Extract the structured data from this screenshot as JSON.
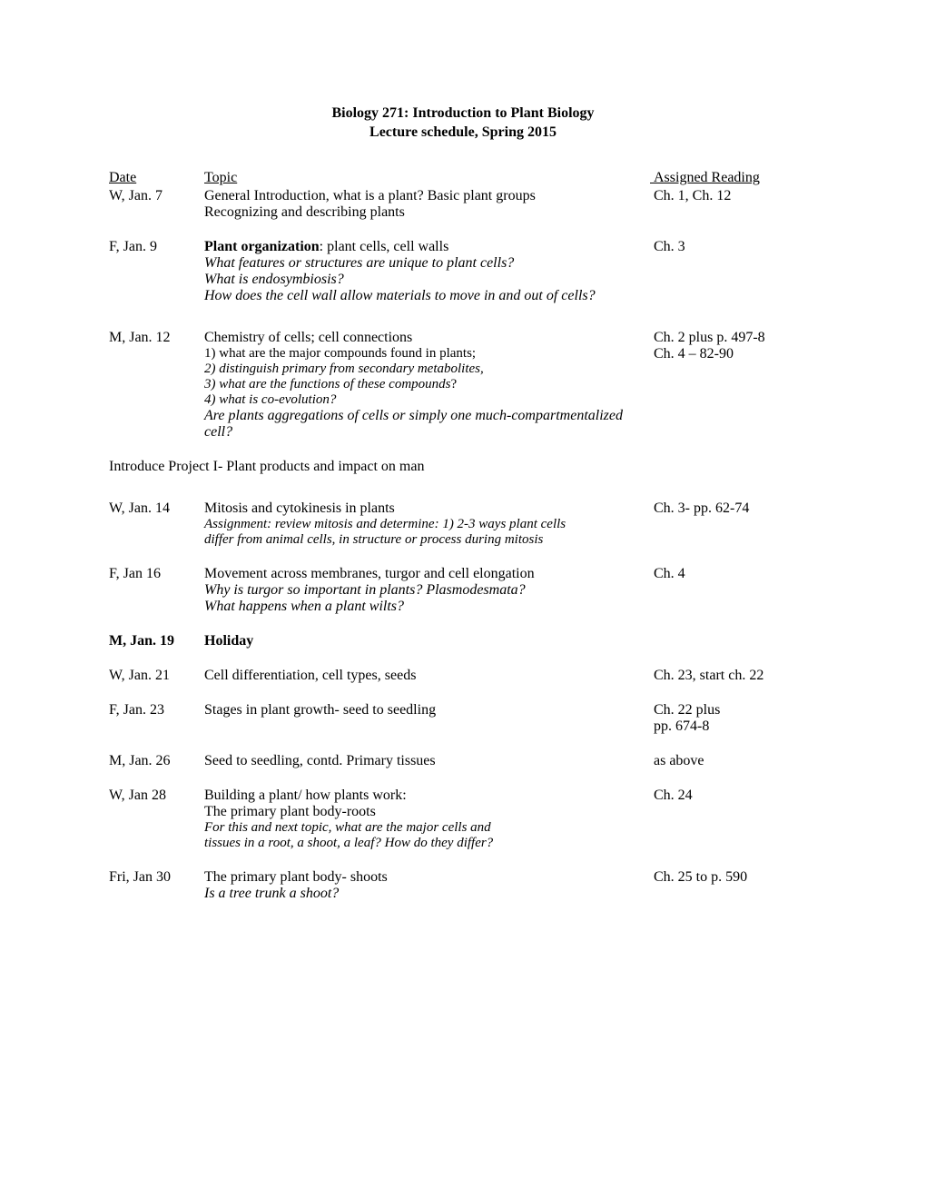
{
  "title": {
    "line1": "Biology 271: Introduction to Plant Biology",
    "line2": "Lecture schedule, Spring 2015"
  },
  "headers": {
    "date": "Date",
    "topic": "Topic",
    "reading": "Assigned Reading"
  },
  "entries": [
    {
      "date": "W, Jan. 7",
      "topic_main": "General Introduction, what is a plant? Basic plant groups",
      "topic_lines": [
        "Recognizing and describing plants"
      ],
      "reading": "Ch. 1, Ch. 12"
    },
    {
      "date": "F, Jan.  9",
      "topic_bold_prefix": "Plant organization",
      "topic_after_prefix": ": plant cells, cell walls",
      "italic_lines": [
        "What features or structures are unique to plant cells?",
        "What is endosymbiosis?",
        "How does the cell wall allow materials to move in and out of cells?"
      ],
      "reading": "Ch. 3"
    },
    {
      "date": "M, Jan. 12",
      "topic_main": "Chemistry of cells; cell connections",
      "sub_lines": [
        "1) what are the major compounds found in plants;"
      ],
      "italic_sub_lines": [
        "2) distinguish primary from secondary metabolites,",
        "3) what are the functions of these compounds",
        "4) what is co-evolution?"
      ],
      "italic_last": "Are plants aggregations of cells or simply one much-compartmentalized cell?",
      "reading": "Ch. 2 plus p. 497-8",
      "reading2": "Ch. 4 – 82-90",
      "q3_suffix": "?"
    }
  ],
  "project_line": "Introduce Project I-  Plant products and impact on man",
  "entries2": [
    {
      "date": "W, Jan. 14",
      "topic_main": "Mitosis and cytokinesis in plants",
      "italic_lines": [
        "Assignment: review mitosis and determine: 1) 2-3 ways plant cells",
        "differ from animal cells, in structure or process during mitosis"
      ],
      "reading": "Ch. 3- pp. 62-74"
    },
    {
      "date": "F, Jan 16",
      "topic_main": "Movement across membranes, turgor and cell elongation",
      "italic_lines": [
        "Why is turgor so important in plants? Plasmodesmata?",
        "What happens when a plant wilts?"
      ],
      "reading": "Ch. 4"
    },
    {
      "date": "M, Jan. 19",
      "topic_main": "Holiday",
      "bold_all": true,
      "reading": ""
    },
    {
      "date": "W, Jan. 21",
      "topic_main": "Cell differentiation, cell types, seeds",
      "reading": "Ch. 23, start ch. 22"
    },
    {
      "date": "F, Jan. 23",
      "topic_main": "Stages in plant growth- seed to seedling",
      "reading": "Ch. 22 plus",
      "reading2": "pp. 674-8"
    },
    {
      "date": "M, Jan. 26",
      "topic_main": "Seed to seedling, contd.  Primary tissues",
      "reading": "as above"
    },
    {
      "date": "W, Jan 28",
      "topic_main": "Building a plant/ how plants work:",
      "topic_lines": [
        "The primary plant body-roots"
      ],
      "italic_lines": [
        "For this and next topic, what are the major cells and",
        "tissues in a root, a shoot, a leaf? How do they differ?"
      ],
      "reading": "Ch. 24"
    },
    {
      "date": "Fri, Jan 30",
      "topic_main": "The primary plant body- shoots",
      "italic_lines": [
        "Is a tree trunk a shoot?"
      ],
      "reading": "Ch. 25 to p. 590"
    }
  ]
}
